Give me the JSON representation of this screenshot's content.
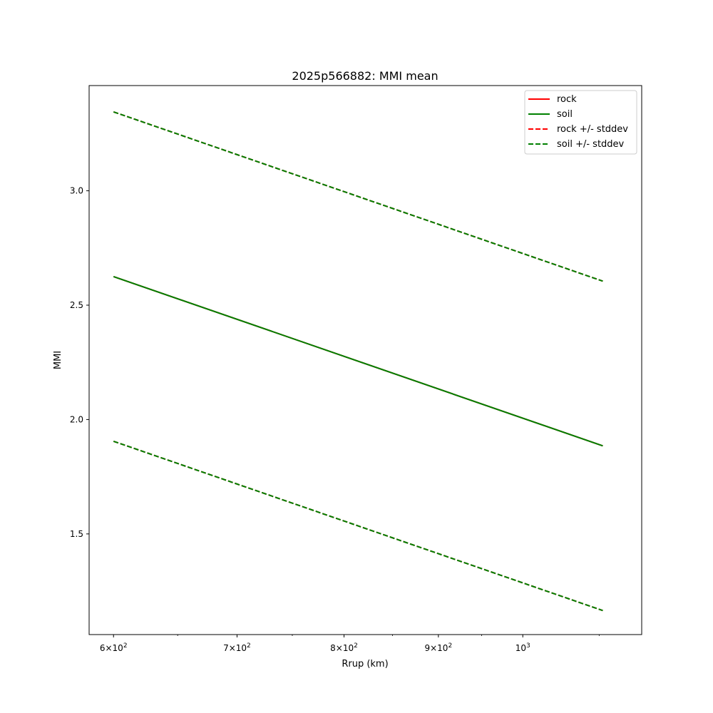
{
  "chart_data": {
    "type": "line",
    "title": "2025p566882: MMI mean",
    "xlabel": "Rrup (km)",
    "ylabel": "MMI",
    "xscale": "log",
    "xlim": [
      582,
      1160
    ],
    "ylim": [
      1.06,
      3.46
    ],
    "x_ticks": [
      {
        "value": 600,
        "base": "6",
        "exp": "10",
        "pow": "2"
      },
      {
        "value": 700,
        "base": "7",
        "exp": "10",
        "pow": "2"
      },
      {
        "value": 800,
        "base": "8",
        "exp": "10",
        "pow": "2"
      },
      {
        "value": 900,
        "base": "9",
        "exp": "10",
        "pow": "2"
      },
      {
        "value": 1000,
        "base": "",
        "exp": "10",
        "pow": "3"
      }
    ],
    "y_ticks": [
      "1.5",
      "2.0",
      "2.5",
      "3.0"
    ],
    "legend_position": "upper right",
    "grid": false,
    "series": [
      {
        "name": "rock",
        "color": "#ff0000",
        "style": "solid",
        "x": [
          600,
          1105
        ],
        "y": [
          2.625,
          1.885
        ]
      },
      {
        "name": "soil",
        "color": "#008000",
        "style": "solid",
        "x": [
          600,
          1105
        ],
        "y": [
          2.625,
          1.885
        ]
      },
      {
        "name": "rock +/- stddev",
        "color": "#ff0000",
        "style": "dashed",
        "x": [
          600,
          1105
        ],
        "y": [
          3.345,
          2.605
        ],
        "y_lower": [
          1.905,
          1.165
        ]
      },
      {
        "name": "soil +/- stddev",
        "color": "#008000",
        "style": "dashed",
        "x": [
          600,
          1105
        ],
        "y": [
          3.345,
          2.605
        ],
        "y_lower": [
          1.905,
          1.165
        ]
      }
    ]
  }
}
